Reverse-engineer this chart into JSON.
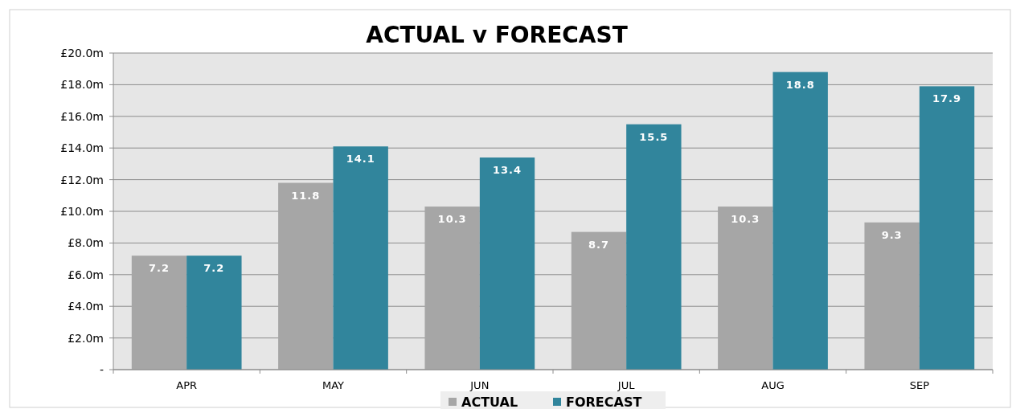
{
  "chart_data": {
    "type": "bar",
    "title": "ACTUAL v FORECAST",
    "categories": [
      "APR",
      "MAY",
      "JUN",
      "JUL",
      "AUG",
      "SEP"
    ],
    "series": [
      {
        "name": "ACTUAL",
        "color": "#a6a6a6",
        "values": [
          7.2,
          11.8,
          10.3,
          8.7,
          10.3,
          9.3
        ]
      },
      {
        "name": "FORECAST",
        "color": "#31859c",
        "values": [
          7.2,
          14.1,
          13.4,
          15.5,
          18.8,
          17.9
        ]
      }
    ],
    "ylim": [
      0,
      20
    ],
    "yticks": [
      {
        "value": 0,
        "label": "-"
      },
      {
        "value": 2,
        "label": "£2.0m"
      },
      {
        "value": 4,
        "label": "£4.0m"
      },
      {
        "value": 6,
        "label": "£6.0m"
      },
      {
        "value": 8,
        "label": "£8.0m"
      },
      {
        "value": 10,
        "label": "£10.0m"
      },
      {
        "value": 12,
        "label": "£12.0m"
      },
      {
        "value": 14,
        "label": "£14.0m"
      },
      {
        "value": 16,
        "label": "£16.0m"
      },
      {
        "value": 18,
        "label": "£18.0m"
      },
      {
        "value": 20,
        "label": "£20.0m"
      }
    ],
    "grid": "y",
    "legend": "bottom",
    "data_labels": true
  }
}
